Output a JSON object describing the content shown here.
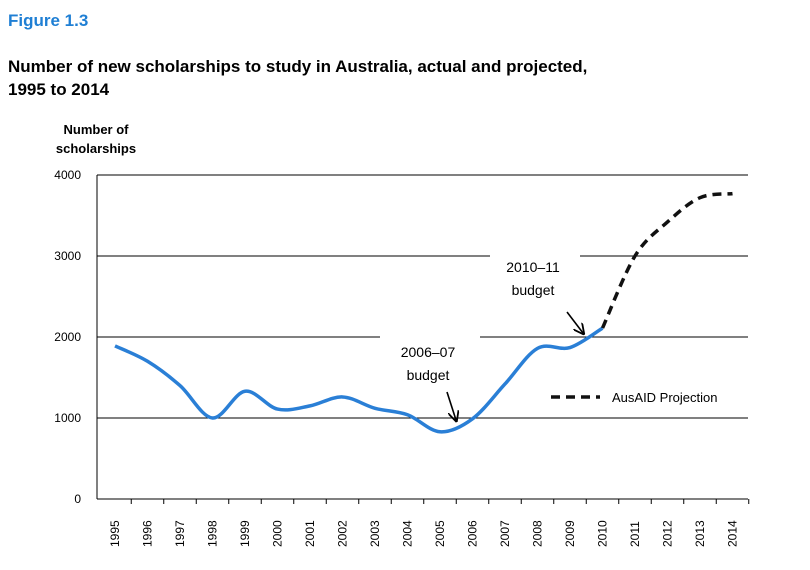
{
  "figure_label": "Figure 1.3",
  "chart_data": {
    "type": "line",
    "title": [
      "Number of new scholarships to study in Australia, actual and projected,",
      "1995 to 2014"
    ],
    "y_label": [
      "Number of",
      "scholarships"
    ],
    "categories": [
      "1995",
      "1996",
      "1997",
      "1998",
      "1999",
      "2000",
      "2001",
      "2002",
      "2003",
      "2004",
      "2005",
      "2006",
      "2007",
      "2008",
      "2009",
      "2010",
      "2011",
      "2012",
      "2013",
      "2014"
    ],
    "series": [
      {
        "color": "#2a7fd6",
        "dashed": false,
        "values": [
          1890,
          1700,
          1400,
          1000,
          1330,
          1110,
          1150,
          1260,
          1120,
          1040,
          830,
          990,
          1420,
          1860,
          1870,
          2110,
          null,
          null,
          null,
          null
        ]
      },
      {
        "name": "AusAID Projection",
        "color": "#111111",
        "dashed": true,
        "values": [
          null,
          null,
          null,
          null,
          null,
          null,
          null,
          null,
          null,
          null,
          null,
          null,
          null,
          null,
          null,
          2110,
          3000,
          3420,
          3720,
          3770
        ]
      }
    ],
    "ylim": [
      0,
      4000
    ],
    "yticks": [
      0,
      1000,
      2000,
      3000,
      4000
    ],
    "grid": true,
    "annotations": [
      [
        "2006–07",
        "budget"
      ],
      [
        "2010–11",
        "budget"
      ]
    ]
  }
}
